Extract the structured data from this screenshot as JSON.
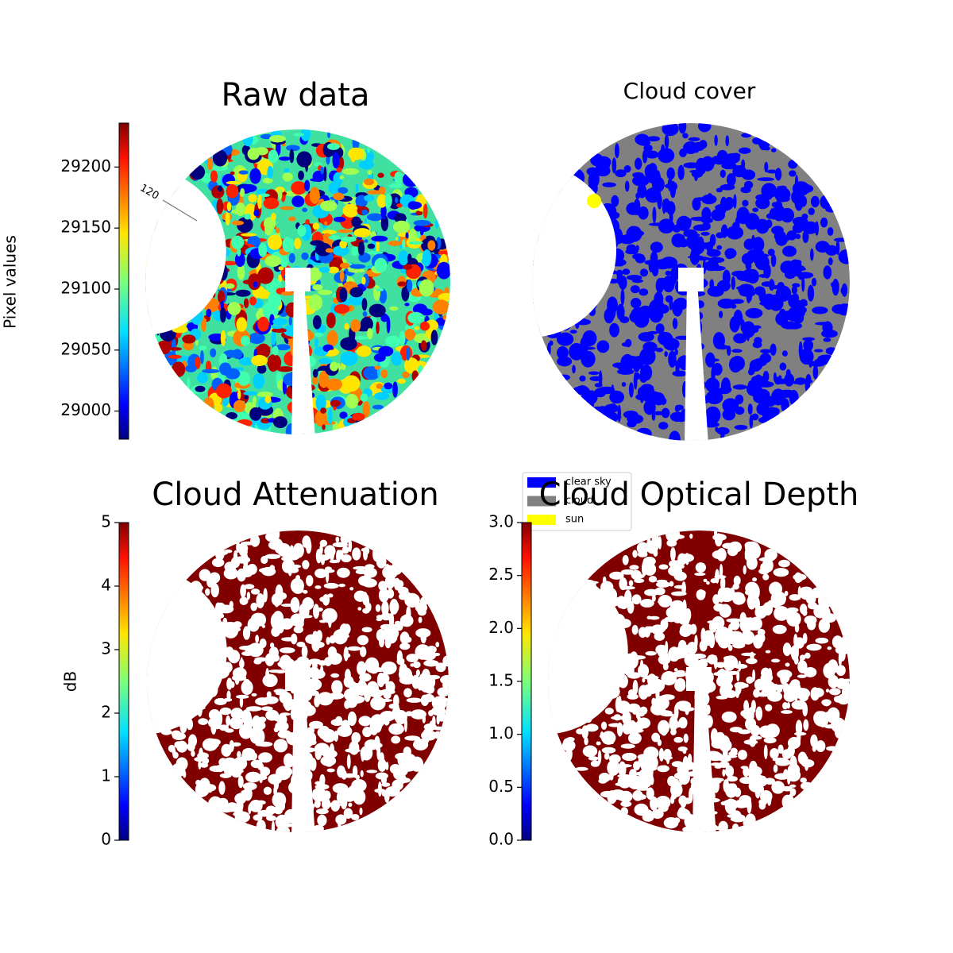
{
  "chart_data": [
    {
      "type": "image",
      "title": "Raw data",
      "ylabel": "Pixel values",
      "colormap": "jet",
      "ylim": [
        28977,
        29236
      ],
      "yticks": [
        29000,
        29050,
        29100,
        29150,
        29200
      ],
      "annotations": [
        "120"
      ]
    },
    {
      "type": "image",
      "title": "Cloud cover",
      "series": [
        {
          "name": "clear sky",
          "color": "#0000ff"
        },
        {
          "name": "cloud",
          "color": "#808080"
        },
        {
          "name": "sun",
          "color": "#ffff00"
        }
      ]
    },
    {
      "type": "image",
      "title": "Cloud Attenuation",
      "ylabel": "dB",
      "colormap": "jet",
      "ylim": [
        0,
        5
      ],
      "yticks": [
        0,
        1,
        2,
        3,
        4,
        5
      ]
    },
    {
      "type": "image",
      "title": "Cloud Optical Depth",
      "colormap": "jet",
      "ylim": [
        0,
        3
      ],
      "yticks": [
        {
          "value": 0,
          "label": "0.0"
        },
        {
          "value": 0.5,
          "label": "0.5"
        },
        {
          "value": 1,
          "label": "1.0"
        },
        {
          "value": 1.5,
          "label": "1.5"
        },
        {
          "value": 2,
          "label": "2.0"
        },
        {
          "value": 2.5,
          "label": "2.5"
        },
        {
          "value": 3,
          "label": "3.0"
        }
      ]
    }
  ]
}
